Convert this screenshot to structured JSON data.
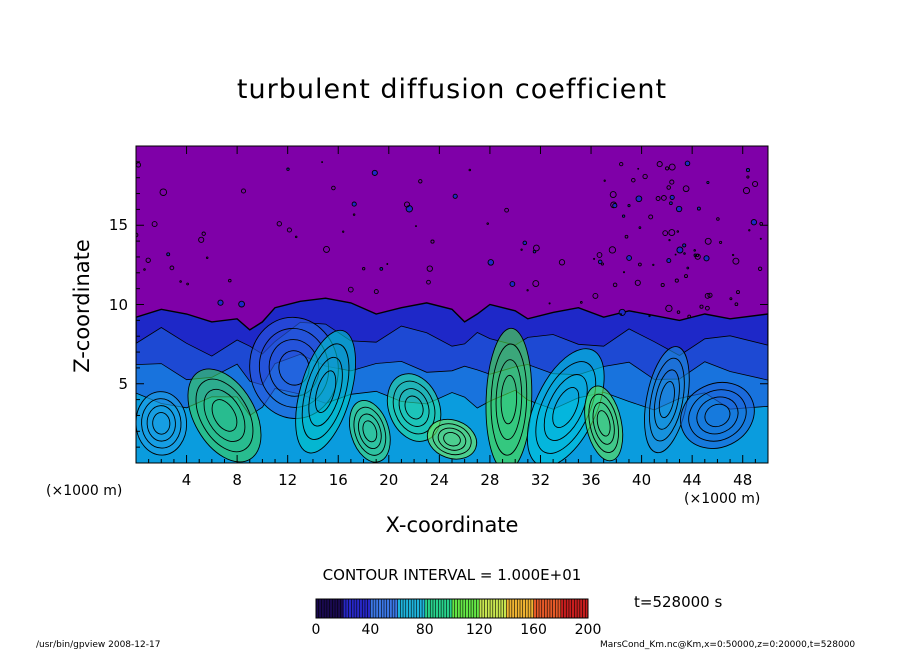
{
  "chart_data": {
    "type": "heatmap",
    "title": "turbulent diffusion coefficient",
    "xlabel": "X-coordinate",
    "ylabel": "Z-coordinate",
    "x_unit_left": "(×1000 m)",
    "x_unit_right": "(×1000 m)",
    "xlim": [
      0,
      50
    ],
    "ylim": [
      0,
      20
    ],
    "x_ticks": [
      "4",
      "8",
      "12",
      "16",
      "20",
      "24",
      "28",
      "32",
      "36",
      "40",
      "44",
      "48"
    ],
    "x_tick_values": [
      4,
      8,
      12,
      16,
      20,
      24,
      28,
      32,
      36,
      40,
      44,
      48
    ],
    "y_ticks": [
      "5",
      "10",
      "15"
    ],
    "y_tick_values": [
      5,
      10,
      15
    ],
    "contour_interval_label": "CONTOUR INTERVAL = 1.000E+01",
    "colorbar_ticks": [
      "0",
      "40",
      "80",
      "120",
      "160",
      "200"
    ],
    "colorbar_values": [
      0,
      40,
      80,
      120,
      160,
      200
    ],
    "time_label": "t=528000 s",
    "grid": false,
    "colors": {
      "background": "#7f00a8",
      "low": "#1e28c8",
      "mid": "#00d2d2",
      "high": "#50e640"
    }
  },
  "footer": {
    "left": "/usr/bin/gpview   2008-12-17",
    "right": "MarsCond_Km.nc@Km,x=0:50000,z=0:20000,t=528000"
  }
}
